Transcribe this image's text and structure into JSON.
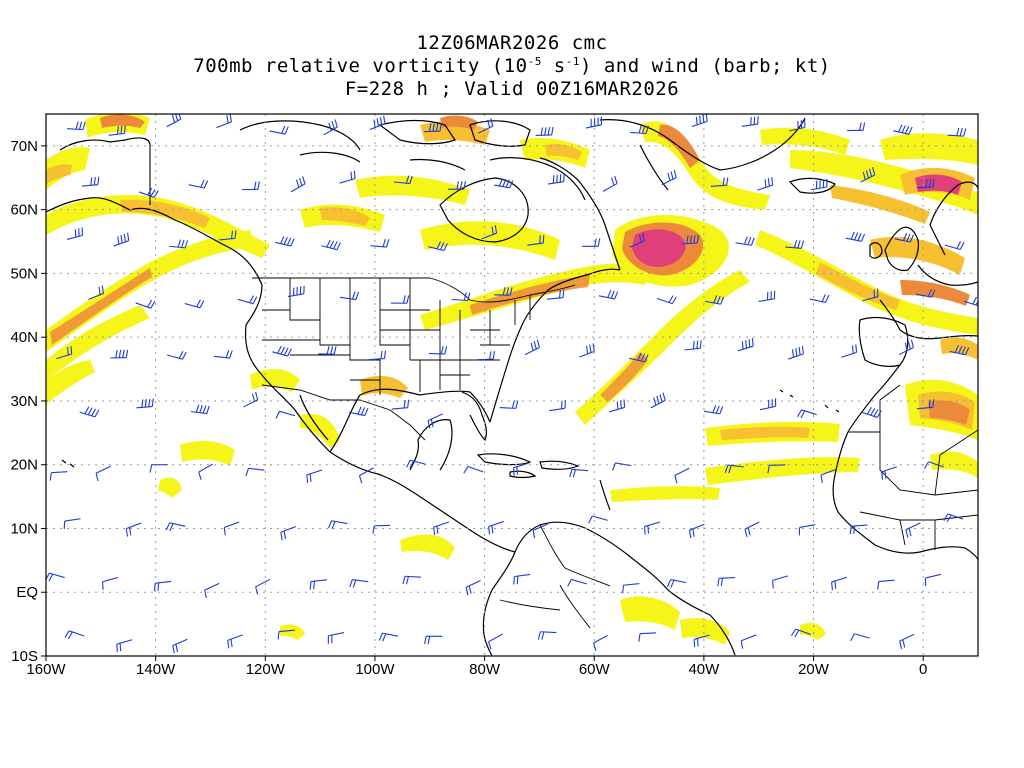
{
  "title": {
    "line1": "12Z06MAR2026 cmc",
    "line2_pre": "700mb relative vorticity (10",
    "line2_exp1": "-5",
    "line2_mid": " s",
    "line2_exp2": "-1",
    "line2_post": ") and wind (barb; kt)",
    "line3": "F=228 h ; Valid 00Z16MAR2026"
  },
  "axes": {
    "lat_labels": [
      "70N",
      "60N",
      "50N",
      "40N",
      "30N",
      "20N",
      "10N",
      "EQ",
      "10S"
    ],
    "lon_labels": [
      "160W",
      "140W",
      "120W",
      "100W",
      "80W",
      "60W",
      "40W",
      "20W",
      "0"
    ],
    "lat_range": [
      -10,
      75
    ],
    "lon_range": [
      -160,
      10
    ],
    "grid": true
  },
  "colors": {
    "shade_low": "#f5f51a",
    "shade_mid": "#f7c030",
    "shade_high": "#ec8a3c",
    "shade_peak": "#e0407a",
    "barb": "#1c3cd8",
    "coast": "#000000",
    "grid": "#9a9a9a"
  }
}
